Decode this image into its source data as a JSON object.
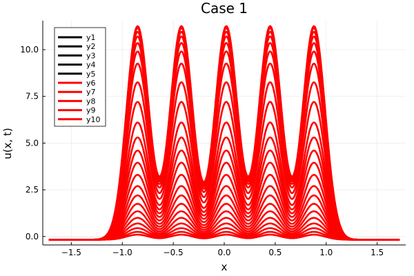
{
  "chart_data": {
    "type": "line",
    "title": "Case 1",
    "xlabel": "x",
    "ylabel": "u(x, t)",
    "xlim": [
      -1.78,
      1.78
    ],
    "ylim": [
      -0.45,
      11.55
    ],
    "x_ticks": [
      -1.5,
      -1.0,
      -0.5,
      0.0,
      0.5,
      1.0,
      1.5
    ],
    "x_tick_labels": [
      "−1.5",
      "−1.0",
      "−0.5",
      "0.0",
      "0.5",
      "1.0",
      "1.5"
    ],
    "y_ticks": [
      0.0,
      2.5,
      5.0,
      7.5,
      10.0
    ],
    "y_tick_labels": [
      "0.0",
      "2.5",
      "5.0",
      "7.5",
      "10.0"
    ],
    "grid": true,
    "legend_position": "top-left",
    "peak_centers": [
      -0.85,
      -0.42,
      0.02,
      0.45,
      0.88
    ],
    "peak_width": 0.11,
    "baseline": -0.17,
    "x_range": [
      -1.72,
      1.72
    ],
    "curve_peaks": [
      0.1,
      0.25,
      0.45,
      0.7,
      1.0,
      1.35,
      1.75,
      2.2,
      2.7,
      3.3,
      3.95,
      4.6,
      5.3,
      6.1,
      7.2,
      8.25,
      9.25,
      9.9,
      10.35,
      10.7,
      10.95,
      11.15,
      11.25
    ],
    "series": [
      {
        "name": "y1",
        "color": "#000000"
      },
      {
        "name": "y2",
        "color": "#000000"
      },
      {
        "name": "y3",
        "color": "#000000"
      },
      {
        "name": "y4",
        "color": "#000000"
      },
      {
        "name": "y5",
        "color": "#000000"
      },
      {
        "name": "y6",
        "color": "#ff0000"
      },
      {
        "name": "y7",
        "color": "#ff0000"
      },
      {
        "name": "y8",
        "color": "#ff0000"
      },
      {
        "name": "y9",
        "color": "#ff0000"
      },
      {
        "name": "y10",
        "color": "#ff0000"
      }
    ]
  }
}
